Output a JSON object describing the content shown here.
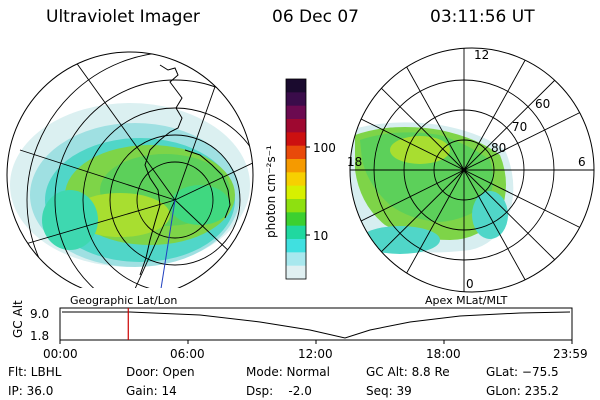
{
  "header": {
    "instrument": "Ultraviolet Imager",
    "date": "06 Dec 07",
    "time": "03:11:56 UT"
  },
  "left_map": {
    "caption": "Geographic Lat/Lon"
  },
  "right_map": {
    "caption": "Apex MLat/MLT",
    "mlt_labels": [
      "12",
      "18",
      "6",
      "0"
    ],
    "mlat_labels": [
      "60",
      "70",
      "80"
    ]
  },
  "colorbar": {
    "unit_label": "photon cm⁻²s⁻¹",
    "tick_labels": [
      "100",
      "10"
    ],
    "colors": [
      "#1a0a2e",
      "#3a0c4a",
      "#6b0a50",
      "#9e0830",
      "#cc1010",
      "#e84a0a",
      "#f59a00",
      "#f7d000",
      "#d7f000",
      "#8ee010",
      "#3cd030",
      "#20d8a0",
      "#40e0e0",
      "#a8e8ee",
      "#e0f0f2"
    ]
  },
  "orbit_plot": {
    "y_axis_label": "GC Alt",
    "y_ticks": [
      "9.0",
      "1.8"
    ],
    "x_ticks": [
      "00:00",
      "06:00",
      "12:00",
      "18:00",
      "23:59"
    ],
    "marker_time_hours": 3.2,
    "marker_color": "#cc0000"
  },
  "info": {
    "flt": "Flt: LBHL",
    "ip": "IP: 36.0",
    "door": "Door: Open",
    "gain": "Gain: 14",
    "mode": "Mode: Normal",
    "dsp": "Dsp:    -2.0",
    "gc_alt": "GC Alt: 8.8 Re",
    "seq": "Seq: 39",
    "glat": "GLat: −75.5",
    "glon": "GLon: 235.2"
  }
}
